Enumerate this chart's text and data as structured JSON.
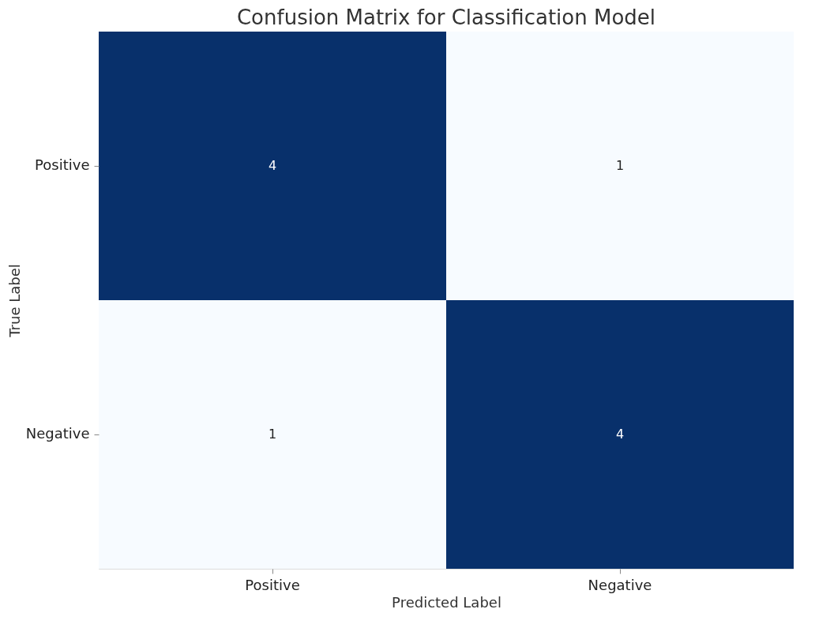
{
  "chart_data": {
    "type": "heatmap",
    "title": "Confusion Matrix for Classification Model",
    "xlabel": "Predicted Label",
    "ylabel": "True Label",
    "categories": [
      "Positive",
      "Negative"
    ],
    "y_categories": [
      "Positive",
      "Negative"
    ],
    "cells": [
      [
        4,
        1
      ],
      [
        1,
        4
      ]
    ],
    "data_labels": true
  }
}
